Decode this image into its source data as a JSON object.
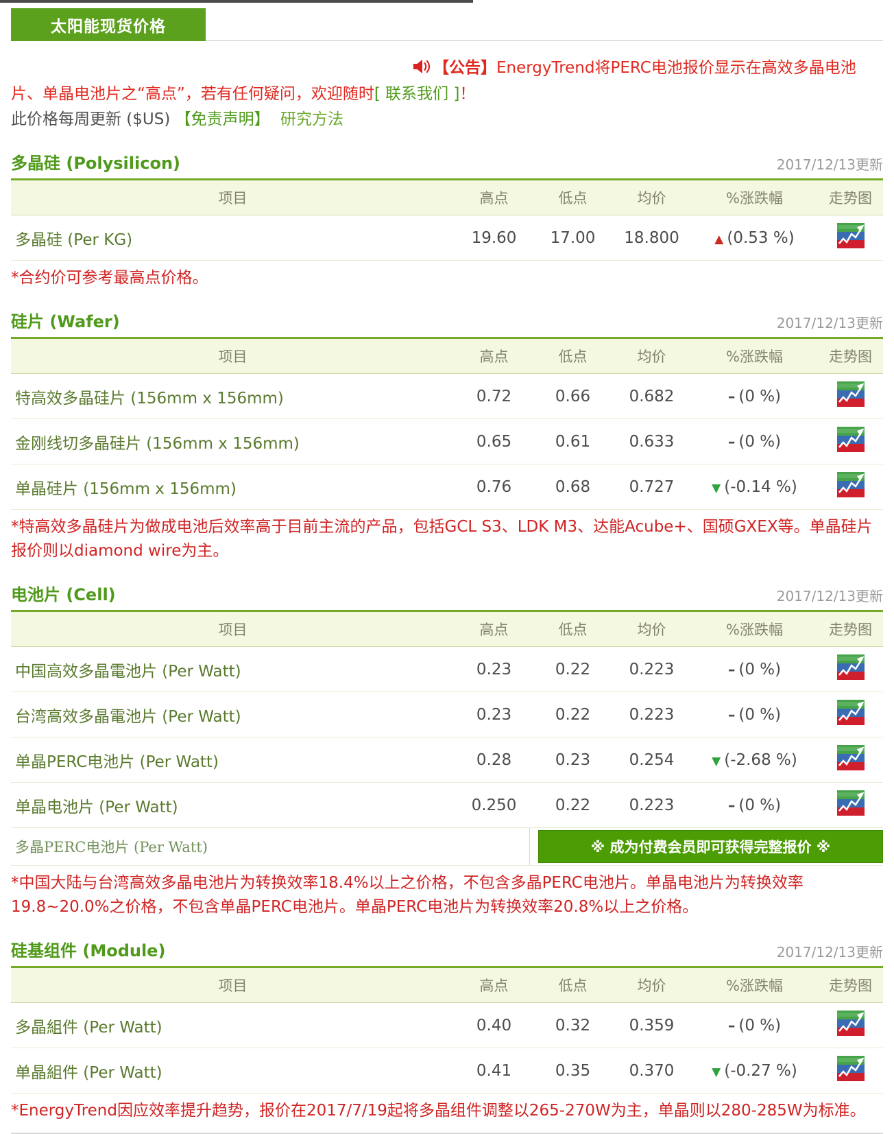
{
  "page": {
    "tab_title": "太阳能现货价格",
    "announcement": {
      "label": "【公告】",
      "text": "EnergyTrend将PERC电池报价显示在高效多晶电池片、单晶电池片之“高点”，若有任何疑问，欢迎随时",
      "link": "[ 联系我们 ]",
      "suffix": "！"
    },
    "update_note": "此价格每周更新 ($US)",
    "disclaimer_link": "【免责声明】",
    "methodology_link": "研究方法"
  },
  "columns": [
    "项目",
    "高点",
    "低点",
    "均价",
    "%涨跌幅",
    "走势图"
  ],
  "sections": [
    {
      "id": "polysilicon",
      "title": "多晶硅 (Polysilicon)",
      "updated": "2017/12/13更新",
      "rows": [
        {
          "item": "多晶硅 (Per KG)",
          "high": "19.60",
          "low": "17.00",
          "avg": "18.800",
          "dir": "up",
          "change": "(0.53 %)"
        }
      ],
      "footnote": "*合约价可参考最高点价格。"
    },
    {
      "id": "wafer",
      "title": "硅片 (Wafer)",
      "updated": "2017/12/13更新",
      "rows": [
        {
          "item": "特高效多晶硅片 (156mm x 156mm)",
          "high": "0.72",
          "low": "0.66",
          "avg": "0.682",
          "dir": "flat",
          "change": "(0 %)"
        },
        {
          "item": "金刚线切多晶硅片 (156mm x 156mm)",
          "high": "0.65",
          "low": "0.61",
          "avg": "0.633",
          "dir": "flat",
          "change": "(0 %)"
        },
        {
          "item": "单晶硅片 (156mm x 156mm)",
          "high": "0.76",
          "low": "0.68",
          "avg": "0.727",
          "dir": "down",
          "change": "(-0.14 %)"
        }
      ],
      "footnote": "*特高效多晶硅片为做成电池后效率高于目前主流的产品，包括GCL S3、LDK M3、达能Acube+、国硕GXEX等。单晶硅片报价则以diamond wire为主。"
    },
    {
      "id": "cell",
      "title": "电池片 (Cell)",
      "updated": "2017/12/13更新",
      "rows": [
        {
          "item": "中国高效多晶電池片 (Per Watt)",
          "high": "0.23",
          "low": "0.22",
          "avg": "0.223",
          "dir": "flat",
          "change": "(0 %)"
        },
        {
          "item": "台湾高效多晶電池片 (Per Watt)",
          "high": "0.23",
          "low": "0.22",
          "avg": "0.223",
          "dir": "flat",
          "change": "(0 %)"
        },
        {
          "item": "单晶PERC电池片 (Per Watt)",
          "high": "0.28",
          "low": "0.23",
          "avg": "0.254",
          "dir": "down",
          "change": "(-2.68 %)"
        },
        {
          "item": "单晶电池片 (Per Watt)",
          "high": "0.250",
          "low": "0.22",
          "avg": "0.223",
          "dir": "flat",
          "change": "(0 %)"
        }
      ],
      "member_row": {
        "item": "多晶PERC电池片 (Per Watt)",
        "banner": "※ 成为付费会员即可获得完整报价 ※"
      },
      "footnote": "*中国大陆与台湾高效多晶电池片为转换效率18.4%以上之价格，不包含多晶PERC电池片。单晶电池片为转换效率19.8~20.0%之价格，不包含单晶PERC电池片。单晶PERC电池片为转换效率20.8%以上之价格。"
    },
    {
      "id": "module",
      "title": "硅基组件 (Module)",
      "updated": "2017/12/13更新",
      "rows": [
        {
          "item": "多晶組件 (Per Watt)",
          "high": "0.40",
          "low": "0.32",
          "avg": "0.359",
          "dir": "flat",
          "change": "(0 %)"
        },
        {
          "item": "单晶組件 (Per Watt)",
          "high": "0.41",
          "low": "0.35",
          "avg": "0.370",
          "dir": "down",
          "change": "(-0.27 %)"
        }
      ],
      "footnote": "*EnergyTrend因应效率提升趋势，报价在2017/7/19起将多晶组件调整以265-270W为主，单晶则以280-285W为标准。"
    }
  ],
  "icons": {
    "speaker": "speaker-icon",
    "trend": "trend-chart-icon",
    "up_arrow": "up-arrow-icon",
    "down_arrow": "down-arrow-icon",
    "flat_dash": "flat-dash-icon"
  },
  "colors": {
    "brand_green": "#5ca11d",
    "section_green": "#4f9a1a",
    "banner_green": "#4c9c04",
    "alert_red": "#e02a20",
    "footnote_red": "#d02424",
    "up_red": "#cf2a1f",
    "down_green": "#2fa33c",
    "header_bg": "#f5f8e1"
  }
}
